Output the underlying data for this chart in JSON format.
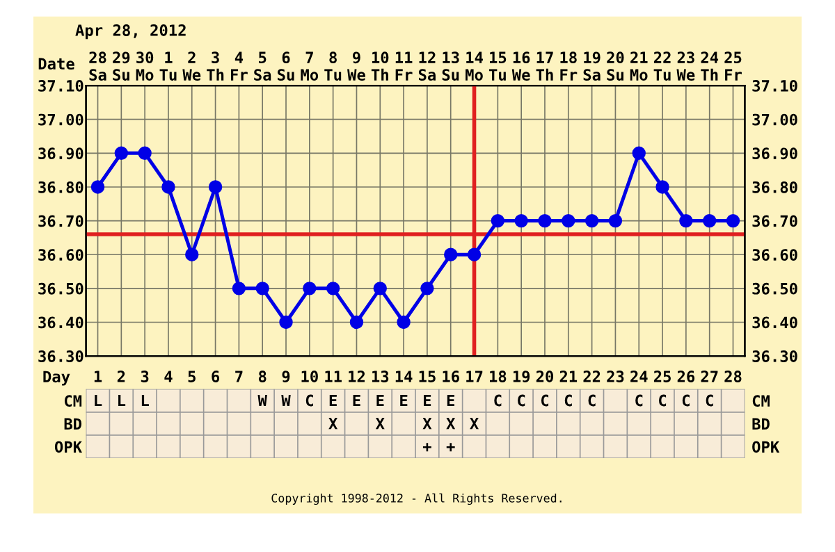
{
  "chart_data": [
    {
      "type": "line",
      "categories": [
        "28\nSa",
        "29\nSu",
        "30\nMo",
        "1\nTu",
        "2\nWe",
        "3\nTh",
        "4\nFr",
        "5\nSa",
        "6\nSu",
        "7\nMo",
        "8\nTu",
        "9\nWe",
        "10\nTh",
        "11\nFr",
        "12\nSa",
        "13\nSu",
        "14\nMo",
        "15\nTu",
        "16\nWe",
        "17\nTh",
        "18\nFr",
        "19\nSa",
        "20\nSu",
        "21\nMo",
        "22\nTu",
        "23\nWe",
        "24\nTh",
        "25\nFr"
      ],
      "series": [
        {
          "color": "#0000e6",
          "values": [
            36.8,
            36.9,
            36.9,
            36.8,
            36.6,
            36.8,
            36.5,
            36.5,
            36.4,
            36.5,
            36.5,
            36.4,
            36.5,
            36.4,
            36.5,
            36.6,
            36.6,
            36.7,
            36.7,
            36.7,
            36.7,
            36.7,
            36.7,
            36.9,
            36.8,
            36.7,
            36.7,
            36.7
          ]
        }
      ],
      "marker": "circle",
      "line_style": "solid",
      "grid": true,
      "xlabel": "Date",
      "ylim": [
        36.3,
        37.1
      ],
      "yticks": [
        {
          "value": 36.3,
          "label": "36.30"
        },
        {
          "value": 36.4,
          "label": "36.40"
        },
        {
          "value": 36.5,
          "label": "36.50"
        },
        {
          "value": 36.6,
          "label": "36.60"
        },
        {
          "value": 36.7,
          "label": "36.70"
        },
        {
          "value": 36.8,
          "label": "36.80"
        },
        {
          "value": 36.9,
          "label": "36.90"
        },
        {
          "value": 37.0,
          "label": "37.00"
        },
        {
          "value": 37.1,
          "label": "37.10"
        }
      ],
      "y2lim": [
        36.3,
        37.1
      ],
      "y2ticks": [
        {
          "value": 36.3,
          "label": "36.30"
        },
        {
          "value": 36.4,
          "label": "36.40"
        },
        {
          "value": 36.5,
          "label": "36.50"
        },
        {
          "value": 36.6,
          "label": "36.60"
        },
        {
          "value": 36.7,
          "label": "36.70"
        },
        {
          "value": 36.8,
          "label": "36.80"
        },
        {
          "value": 36.9,
          "label": "36.90"
        },
        {
          "value": 37.0,
          "label": "37.00"
        },
        {
          "value": 37.1,
          "label": "37.10"
        }
      ],
      "ref_lines": [
        {
          "axis": "y",
          "value": 36.66,
          "color": "#e02020"
        },
        {
          "axis": "x",
          "value": "14\nMo",
          "color": "#e02020"
        }
      ],
      "annotations": [
        "Apr 28, 2012"
      ]
    },
    {
      "type": "heatmap",
      "xlabel": "Day",
      "categories": [
        "1",
        "2",
        "3",
        "4",
        "5",
        "6",
        "7",
        "8",
        "9",
        "10",
        "11",
        "12",
        "13",
        "14",
        "15",
        "16",
        "17",
        "18",
        "19",
        "20",
        "21",
        "22",
        "23",
        "24",
        "25",
        "26",
        "27",
        "28"
      ],
      "y_categories": [
        "CM",
        "BD",
        "OPK"
      ],
      "y2_categories": [
        "CM",
        "BD",
        "OPK"
      ],
      "cells": [
        [
          null,
          null,
          null,
          null,
          null,
          null,
          null,
          null,
          null,
          null,
          null,
          null,
          null,
          null,
          null,
          null,
          null,
          null,
          null,
          null,
          null,
          null,
          null,
          null,
          null,
          null,
          null,
          null
        ],
        [
          null,
          null,
          null,
          null,
          null,
          null,
          null,
          null,
          null,
          null,
          null,
          null,
          null,
          null,
          null,
          null,
          null,
          null,
          null,
          null,
          null,
          null,
          null,
          null,
          null,
          null,
          null,
          null
        ],
        [
          null,
          null,
          null,
          null,
          null,
          null,
          null,
          null,
          null,
          null,
          null,
          null,
          null,
          null,
          null,
          null,
          null,
          null,
          null,
          null,
          null,
          null,
          null,
          null,
          null,
          null,
          null,
          null
        ]
      ],
      "cell_labels": [
        [
          "L",
          "L",
          "L",
          null,
          null,
          null,
          null,
          "W",
          "W",
          "C",
          "E",
          "E",
          "E",
          "E",
          "E",
          "E",
          null,
          "C",
          "C",
          "C",
          "C",
          "C",
          null,
          "C",
          "C",
          "C",
          "C",
          null
        ],
        [
          null,
          null,
          null,
          null,
          null,
          null,
          null,
          null,
          null,
          null,
          "X",
          null,
          "X",
          null,
          "X",
          "X",
          "X",
          null,
          null,
          null,
          null,
          null,
          null,
          null,
          null,
          null,
          null,
          null
        ],
        [
          null,
          null,
          null,
          null,
          null,
          null,
          null,
          null,
          null,
          null,
          null,
          null,
          null,
          null,
          "+",
          "+",
          null,
          null,
          null,
          null,
          null,
          null,
          null,
          null,
          null,
          null,
          null,
          null
        ]
      ],
      "annotations": [
        "Copyright 1998-2012 - All Rights Reserved."
      ]
    }
  ]
}
